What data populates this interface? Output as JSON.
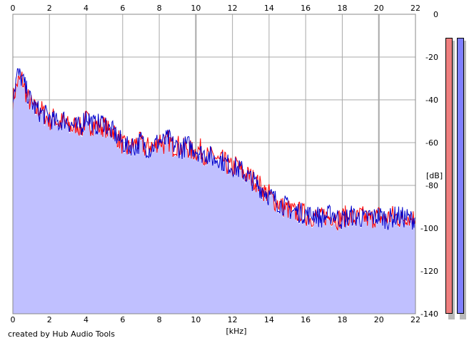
{
  "chart_data": {
    "type": "area",
    "xlabel": "[kHz]",
    "ylabel": "[dB]",
    "xlim": [
      0,
      22
    ],
    "ylim": [
      -140,
      0
    ],
    "x_ticks": [
      "0",
      "2",
      "4",
      "6",
      "8",
      "10",
      "12",
      "14",
      "16",
      "18",
      "20",
      "22"
    ],
    "y_ticks": [
      "0",
      "-20",
      "-40",
      "-60",
      "-80",
      "-100",
      "-120",
      "-140"
    ],
    "grid": true,
    "x": [
      0,
      0.25,
      0.5,
      0.75,
      1,
      1.25,
      1.5,
      1.75,
      2,
      2.25,
      2.5,
      2.75,
      3,
      3.25,
      3.5,
      3.75,
      4,
      4.25,
      4.5,
      4.75,
      5,
      5.25,
      5.5,
      5.75,
      6,
      6.25,
      6.5,
      6.75,
      7,
      7.25,
      7.5,
      7.75,
      8,
      8.25,
      8.5,
      8.75,
      9,
      9.25,
      9.5,
      9.75,
      10,
      10.25,
      10.5,
      10.75,
      11,
      11.25,
      11.5,
      11.75,
      12,
      12.25,
      12.5,
      12.75,
      13,
      13.25,
      13.5,
      13.75,
      14,
      14.25,
      14.5,
      14.75,
      15,
      15.25,
      15.5,
      15.75,
      16,
      16.25,
      16.5,
      16.75,
      17,
      17.25,
      17.5,
      17.75,
      18,
      18.25,
      18.5,
      18.75,
      19,
      19.25,
      19.5,
      19.75,
      20,
      20.25,
      20.5,
      20.75,
      21,
      21.25,
      21.5,
      21.75,
      22
    ],
    "series": [
      {
        "values": [
          -40,
          -32,
          -30,
          -38,
          -42,
          -45,
          -44,
          -47,
          -50,
          -48,
          -51,
          -50,
          -52,
          -53,
          -51,
          -54,
          -49,
          -52,
          -51,
          -53,
          -52,
          -55,
          -54,
          -58,
          -61,
          -63,
          -62,
          -60,
          -60,
          -63,
          -61,
          -62,
          -58,
          -61,
          -59,
          -62,
          -61,
          -63,
          -62,
          -64,
          -64,
          -63,
          -66,
          -67,
          -66,
          -69,
          -68,
          -71,
          -72,
          -70,
          -74,
          -75,
          -76,
          -78,
          -80,
          -83,
          -84,
          -87,
          -88,
          -90,
          -91,
          -92,
          -93,
          -92,
          -94,
          -95,
          -94,
          -96,
          -94,
          -95,
          -94,
          -96,
          -95,
          -94,
          -95,
          -96,
          -94,
          -95,
          -96,
          -95,
          -94,
          -96,
          -95,
          -94,
          -95,
          -96,
          -94,
          -95,
          -96
        ]
      },
      {
        "values": [
          -38,
          -28,
          -30,
          -36,
          -41,
          -44,
          -46,
          -47,
          -48,
          -50,
          -51,
          -49,
          -50,
          -52,
          -53,
          -52,
          -47,
          -50,
          -52,
          -51,
          -50,
          -54,
          -55,
          -58,
          -60,
          -62,
          -61,
          -62,
          -59,
          -62,
          -63,
          -61,
          -59,
          -60,
          -58,
          -61,
          -62,
          -63,
          -61,
          -62,
          -63,
          -65,
          -65,
          -66,
          -68,
          -67,
          -69,
          -70,
          -71,
          -72,
          -73,
          -75,
          -77,
          -79,
          -81,
          -82,
          -85,
          -86,
          -88,
          -89,
          -90,
          -92,
          -92,
          -93,
          -93,
          -94,
          -93,
          -95,
          -95,
          -94,
          -93,
          -95,
          -96,
          -95,
          -94,
          -95,
          -95,
          -96,
          -94,
          -95,
          -94,
          -95,
          -96,
          -95,
          -94,
          -95,
          -95,
          -96,
          -95
        ]
      }
    ],
    "series_colors": [
      "#ff0000",
      "#0000cc"
    ],
    "fill_color": "#c0c0ff",
    "level_meters": [
      {
        "color": "#ef7f7f",
        "level": 1.0
      },
      {
        "color": "#7f7fff",
        "level": 1.0
      }
    ]
  },
  "footer_text": "created by Hub Audio Tools"
}
